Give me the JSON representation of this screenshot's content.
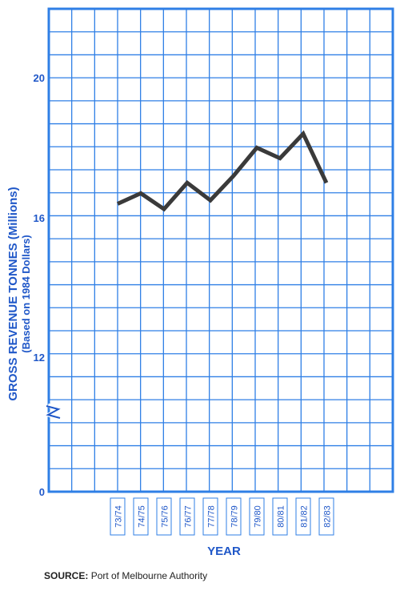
{
  "chart_data": {
    "type": "line",
    "categories": [
      "73/74",
      "74/75",
      "75/76",
      "76/77",
      "77/78",
      "78/79",
      "79/80",
      "80/81",
      "81/82",
      "82/83"
    ],
    "values": [
      16.4,
      16.7,
      16.25,
      17.0,
      16.5,
      17.2,
      18.0,
      17.7,
      18.4,
      17.0
    ],
    "ylabel_line1": "GROSS REVENUE TONNES (Millions)",
    "ylabel_line2": "(Based on 1984 Dollars)",
    "xlabel": "YEAR",
    "y_ticks": [
      "20",
      "16",
      "12",
      "0"
    ],
    "ylim": [
      10,
      22
    ],
    "y_axis_break": true,
    "grid": true,
    "colors": {
      "grid": "#2f7fe6",
      "axis_text": "#1f57c8",
      "line": "#3a3a3a"
    }
  },
  "source": {
    "label": "SOURCE:",
    "text": "Port of Melbourne Authority"
  }
}
